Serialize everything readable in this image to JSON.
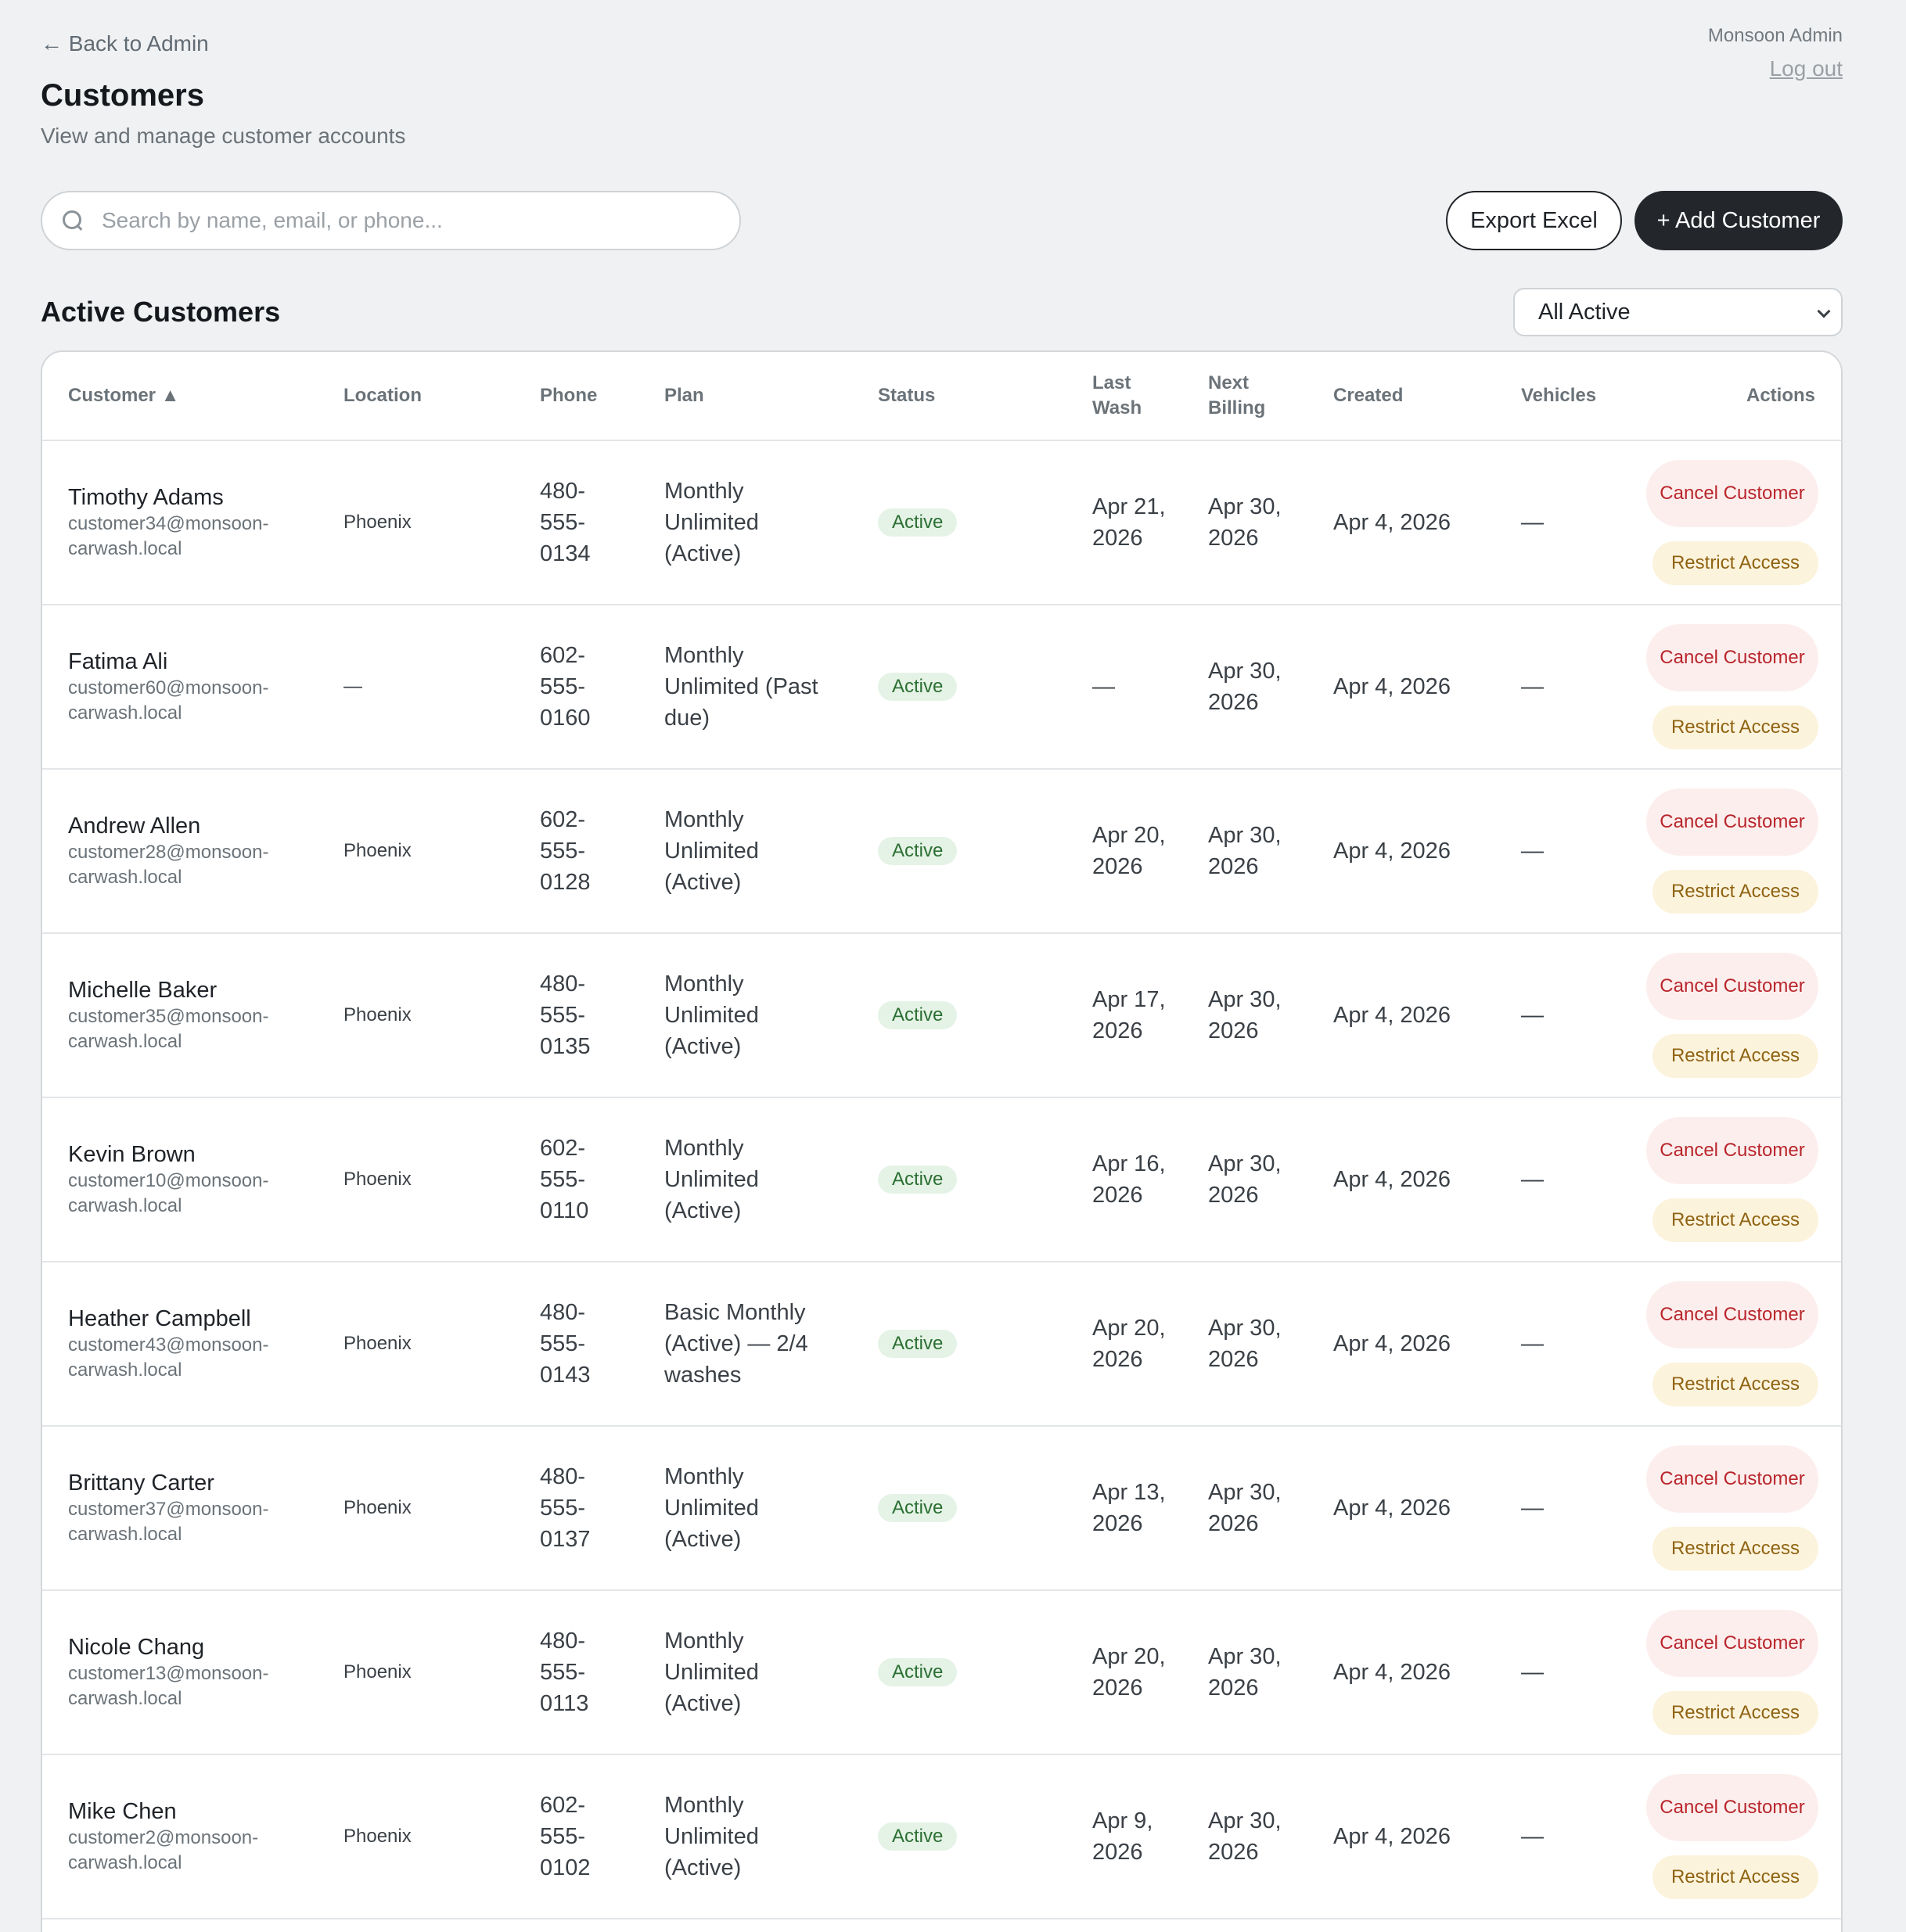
{
  "nav": {
    "back_label": "← Back to Admin"
  },
  "user": {
    "name": "Monsoon Admin",
    "logout_label": "Log out"
  },
  "page": {
    "title": "Customers",
    "subtitle": "View and manage customer accounts"
  },
  "search": {
    "placeholder": "Search by name, email, or phone...",
    "value": ""
  },
  "toolbar": {
    "export_label": "Export Excel",
    "add_label": "+ Add Customer"
  },
  "section": {
    "title": "Active Customers",
    "filter_value": "All Active"
  },
  "table": {
    "columns": {
      "customer": "Customer ▲",
      "location": "Location",
      "phone": "Phone",
      "plan": "Plan",
      "status": "Status",
      "last_wash": "Last Wash",
      "next_billing": "Next Billing",
      "created": "Created",
      "vehicles": "Vehicles",
      "actions": "Actions"
    },
    "cancel_label": "Cancel Customer",
    "restrict_label": "Restrict Access",
    "rows": [
      {
        "name": "Timothy Adams",
        "email": "customer34@monsoon-carwash.local",
        "location": "Phoenix",
        "phone": "480-555-0134",
        "plan": "Monthly Unlimited (Active)",
        "status": "Active",
        "last_wash": "Apr 21, 2026",
        "next_billing": "Apr 30, 2026",
        "created": "Apr 4, 2026",
        "vehicles": "—"
      },
      {
        "name": "Fatima Ali",
        "email": "customer60@monsoon-carwash.local",
        "location": "—",
        "phone": "602-555-0160",
        "plan": "Monthly Unlimited (Past due)",
        "status": "Active",
        "last_wash": "—",
        "next_billing": "Apr 30, 2026",
        "created": "Apr 4, 2026",
        "vehicles": "—"
      },
      {
        "name": "Andrew Allen",
        "email": "customer28@monsoon-carwash.local",
        "location": "Phoenix",
        "phone": "602-555-0128",
        "plan": "Monthly Unlimited (Active)",
        "status": "Active",
        "last_wash": "Apr 20, 2026",
        "next_billing": "Apr 30, 2026",
        "created": "Apr 4, 2026",
        "vehicles": "—"
      },
      {
        "name": "Michelle Baker",
        "email": "customer35@monsoon-carwash.local",
        "location": "Phoenix",
        "phone": "480-555-0135",
        "plan": "Monthly Unlimited (Active)",
        "status": "Active",
        "last_wash": "Apr 17, 2026",
        "next_billing": "Apr 30, 2026",
        "created": "Apr 4, 2026",
        "vehicles": "—"
      },
      {
        "name": "Kevin Brown",
        "email": "customer10@monsoon-carwash.local",
        "location": "Phoenix",
        "phone": "602-555-0110",
        "plan": "Monthly Unlimited (Active)",
        "status": "Active",
        "last_wash": "Apr 16, 2026",
        "next_billing": "Apr 30, 2026",
        "created": "Apr 4, 2026",
        "vehicles": "—"
      },
      {
        "name": "Heather Campbell",
        "email": "customer43@monsoon-carwash.local",
        "location": "Phoenix",
        "phone": "480-555-0143",
        "plan": "Basic Monthly (Active) — 2/4 washes",
        "status": "Active",
        "last_wash": "Apr 20, 2026",
        "next_billing": "Apr 30, 2026",
        "created": "Apr 4, 2026",
        "vehicles": "—"
      },
      {
        "name": "Brittany Carter",
        "email": "customer37@monsoon-carwash.local",
        "location": "Phoenix",
        "phone": "480-555-0137",
        "plan": "Monthly Unlimited (Active)",
        "status": "Active",
        "last_wash": "Apr 13, 2026",
        "next_billing": "Apr 30, 2026",
        "created": "Apr 4, 2026",
        "vehicles": "—"
      },
      {
        "name": "Nicole Chang",
        "email": "customer13@monsoon-carwash.local",
        "location": "Phoenix",
        "phone": "480-555-0113",
        "plan": "Monthly Unlimited (Active)",
        "status": "Active",
        "last_wash": "Apr 20, 2026",
        "next_billing": "Apr 30, 2026",
        "created": "Apr 4, 2026",
        "vehicles": "—"
      },
      {
        "name": "Mike Chen",
        "email": "customer2@monsoon-carwash.local",
        "location": "Phoenix",
        "phone": "602-555-0102",
        "plan": "Monthly Unlimited (Active)",
        "status": "Active",
        "last_wash": "Apr 9, 2026",
        "next_billing": "Apr 30, 2026",
        "created": "Apr 4, 2026",
        "vehicles": "—"
      }
    ]
  }
}
